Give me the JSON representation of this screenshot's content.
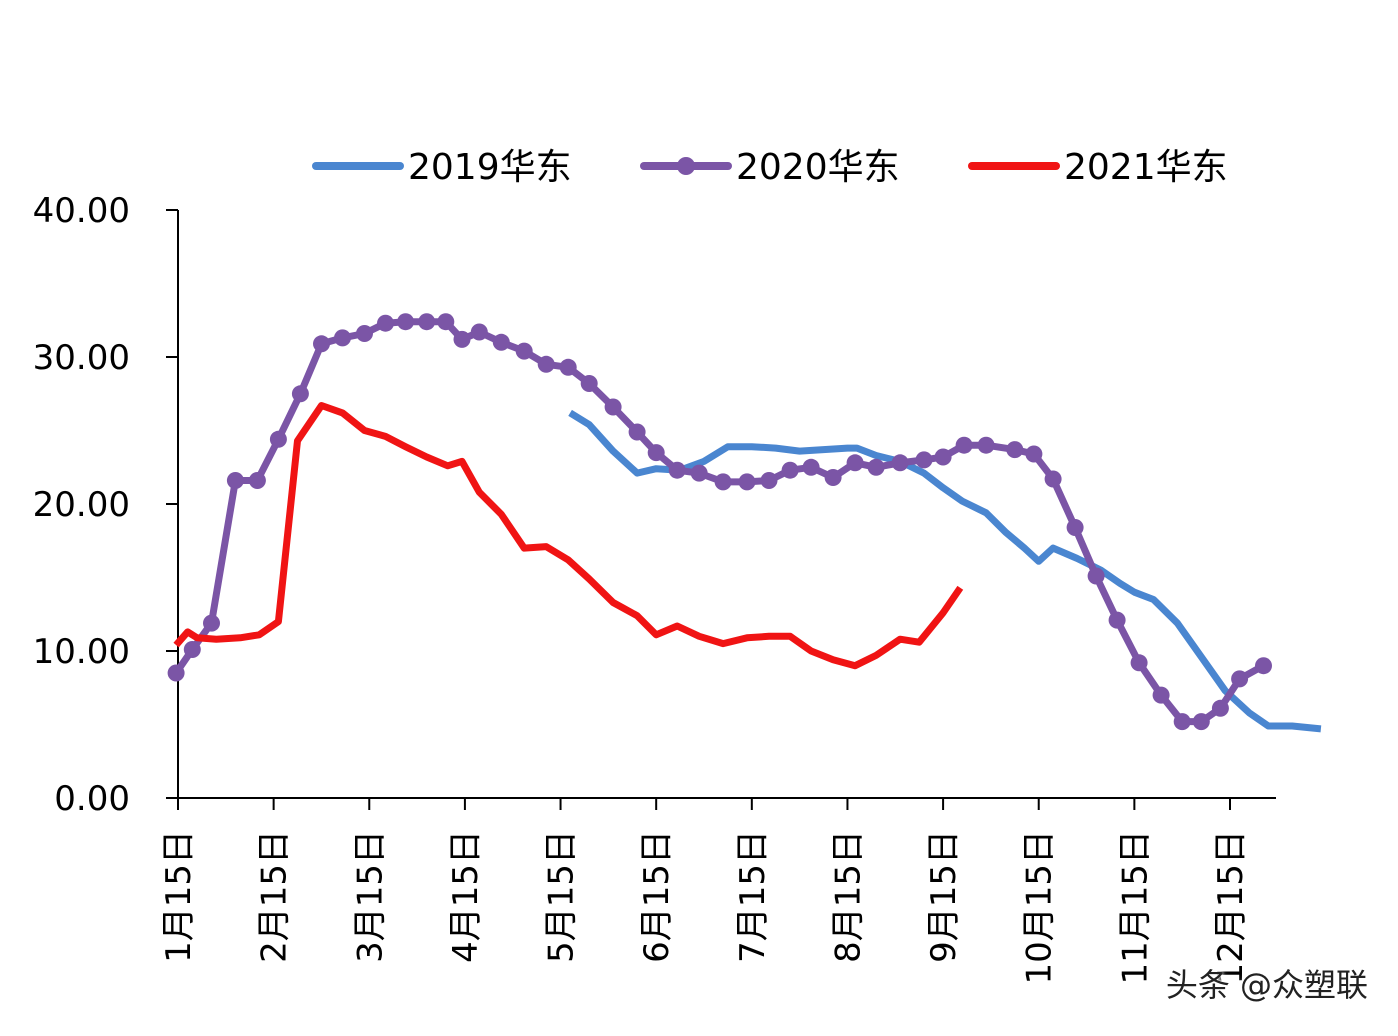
{
  "chart_data": {
    "type": "line",
    "title": "",
    "xlabel": "",
    "ylabel": "",
    "ylim": [
      0,
      40
    ],
    "yticks": [
      "0.00",
      "10.00",
      "20.00",
      "30.00",
      "40.00"
    ],
    "ytick_values": [
      0,
      10,
      20,
      30,
      40
    ],
    "xlim": [
      1,
      13.4
    ],
    "xticks": [
      "1月15日",
      "2月15日",
      "3月15日",
      "4月15日",
      "5月15日",
      "6月15日",
      "7月15日",
      "8月15日",
      "9月15日",
      "10月15日",
      "11月15日",
      "12月15日"
    ],
    "xtick_values": [
      1,
      2,
      3,
      4,
      5,
      6,
      7,
      8,
      9,
      10,
      11,
      12
    ],
    "legend_position": "top",
    "grid": false,
    "series": [
      {
        "name": "2019华东",
        "color": "#4a86d0",
        "marker": false,
        "points": [
          [
            5.1,
            26.2
          ],
          [
            5.3,
            25.4
          ],
          [
            5.55,
            23.6
          ],
          [
            5.8,
            22.1
          ],
          [
            6.0,
            22.4
          ],
          [
            6.25,
            22.3
          ],
          [
            6.5,
            22.9
          ],
          [
            6.75,
            23.9
          ],
          [
            7.0,
            23.9
          ],
          [
            7.25,
            23.8
          ],
          [
            7.5,
            23.6
          ],
          [
            7.75,
            23.7
          ],
          [
            8.0,
            23.8
          ],
          [
            8.1,
            23.8
          ],
          [
            8.3,
            23.3
          ],
          [
            8.55,
            22.9
          ],
          [
            8.8,
            22.1
          ],
          [
            9.0,
            21.1
          ],
          [
            9.2,
            20.2
          ],
          [
            9.45,
            19.4
          ],
          [
            9.65,
            18.1
          ],
          [
            9.85,
            17.0
          ],
          [
            10.0,
            16.1
          ],
          [
            10.15,
            17.0
          ],
          [
            10.4,
            16.3
          ],
          [
            10.65,
            15.5
          ],
          [
            10.85,
            14.6
          ],
          [
            11.0,
            14.0
          ],
          [
            11.2,
            13.5
          ],
          [
            11.45,
            11.9
          ],
          [
            11.7,
            9.6
          ],
          [
            11.95,
            7.3
          ],
          [
            12.2,
            5.8
          ],
          [
            12.4,
            4.9
          ],
          [
            12.65,
            4.9
          ],
          [
            12.95,
            4.7
          ]
        ]
      },
      {
        "name": "2020华东",
        "color": "#7b55a6",
        "marker": true,
        "points": [
          [
            0.98,
            8.5
          ],
          [
            1.15,
            10.1
          ],
          [
            1.35,
            11.9
          ],
          [
            1.6,
            21.6
          ],
          [
            1.83,
            21.6
          ],
          [
            2.05,
            24.4
          ],
          [
            2.28,
            27.5
          ],
          [
            2.5,
            30.9
          ],
          [
            2.72,
            31.3
          ],
          [
            2.95,
            31.6
          ],
          [
            3.17,
            32.3
          ],
          [
            3.38,
            32.4
          ],
          [
            3.6,
            32.4
          ],
          [
            3.8,
            32.4
          ],
          [
            3.97,
            31.2
          ],
          [
            4.15,
            31.7
          ],
          [
            4.38,
            31.0
          ],
          [
            4.62,
            30.4
          ],
          [
            4.85,
            29.5
          ],
          [
            5.08,
            29.3
          ],
          [
            5.3,
            28.2
          ],
          [
            5.55,
            26.6
          ],
          [
            5.8,
            24.9
          ],
          [
            6.0,
            23.5
          ],
          [
            6.22,
            22.3
          ],
          [
            6.45,
            22.1
          ],
          [
            6.7,
            21.5
          ],
          [
            6.95,
            21.5
          ],
          [
            7.18,
            21.6
          ],
          [
            7.4,
            22.3
          ],
          [
            7.62,
            22.5
          ],
          [
            7.85,
            21.8
          ],
          [
            8.08,
            22.8
          ],
          [
            8.3,
            22.5
          ],
          [
            8.55,
            22.8
          ],
          [
            8.8,
            23.0
          ],
          [
            9.0,
            23.2
          ],
          [
            9.22,
            24.0
          ],
          [
            9.45,
            24.0
          ],
          [
            9.75,
            23.7
          ],
          [
            9.95,
            23.4
          ],
          [
            10.15,
            21.7
          ],
          [
            10.38,
            18.4
          ],
          [
            10.6,
            15.1
          ],
          [
            10.82,
            12.1
          ],
          [
            11.05,
            9.2
          ],
          [
            11.28,
            7.0
          ],
          [
            11.5,
            5.2
          ],
          [
            11.7,
            5.2
          ],
          [
            11.9,
            6.1
          ],
          [
            12.1,
            8.1
          ],
          [
            12.35,
            9.0
          ]
        ]
      },
      {
        "name": "2021华东",
        "color": "#f01414",
        "marker": false,
        "points": [
          [
            0.98,
            10.4
          ],
          [
            1.1,
            11.3
          ],
          [
            1.2,
            10.9
          ],
          [
            1.4,
            10.8
          ],
          [
            1.65,
            10.9
          ],
          [
            1.85,
            11.1
          ],
          [
            2.05,
            12.0
          ],
          [
            2.25,
            24.3
          ],
          [
            2.5,
            26.7
          ],
          [
            2.72,
            26.2
          ],
          [
            2.95,
            25.0
          ],
          [
            3.17,
            24.6
          ],
          [
            3.38,
            23.9
          ],
          [
            3.6,
            23.2
          ],
          [
            3.82,
            22.6
          ],
          [
            3.97,
            22.9
          ],
          [
            4.15,
            20.8
          ],
          [
            4.38,
            19.3
          ],
          [
            4.62,
            17.0
          ],
          [
            4.85,
            17.1
          ],
          [
            5.08,
            16.2
          ],
          [
            5.3,
            14.9
          ],
          [
            5.55,
            13.3
          ],
          [
            5.8,
            12.4
          ],
          [
            6.0,
            11.1
          ],
          [
            6.22,
            11.7
          ],
          [
            6.45,
            11.0
          ],
          [
            6.7,
            10.5
          ],
          [
            6.95,
            10.9
          ],
          [
            7.18,
            11.0
          ],
          [
            7.4,
            11.0
          ],
          [
            7.62,
            10.0
          ],
          [
            7.85,
            9.4
          ],
          [
            8.08,
            9.0
          ],
          [
            8.3,
            9.7
          ],
          [
            8.55,
            10.8
          ],
          [
            8.75,
            10.6
          ],
          [
            9.0,
            12.6
          ],
          [
            9.18,
            14.3
          ]
        ]
      }
    ]
  },
  "watermark": "头条 @众塑联"
}
